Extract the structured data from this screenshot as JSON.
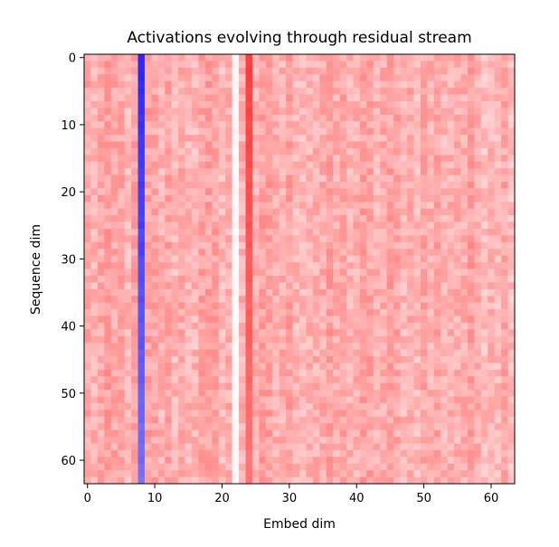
{
  "chart_data": {
    "type": "heatmap",
    "title": "Activations evolving through residual stream",
    "xlabel": "Embed dim",
    "ylabel": "Sequence dim",
    "xlim": [
      -0.5,
      63.5
    ],
    "ylim": [
      63.5,
      -0.5
    ],
    "x_ticks": [
      0,
      10,
      20,
      30,
      40,
      50,
      60
    ],
    "y_ticks": [
      0,
      10,
      20,
      30,
      40,
      50,
      60
    ],
    "rows": 64,
    "cols": 64,
    "colormap": "bwr",
    "value_range": [
      -1,
      1
    ],
    "background_level": 0.32,
    "noise_amplitude": 0.1,
    "notable_columns": [
      {
        "col": 8,
        "level_top": -0.85,
        "level_bottom": -0.55
      },
      {
        "col": 22,
        "level_top": 0.02,
        "level_bottom": 0.0
      },
      {
        "col": 24,
        "level_top": 0.75,
        "level_bottom": 0.55
      }
    ],
    "grid": false,
    "colors": {
      "low": "#0000ff",
      "mid": "#ffffff",
      "high": "#ff0000"
    }
  }
}
